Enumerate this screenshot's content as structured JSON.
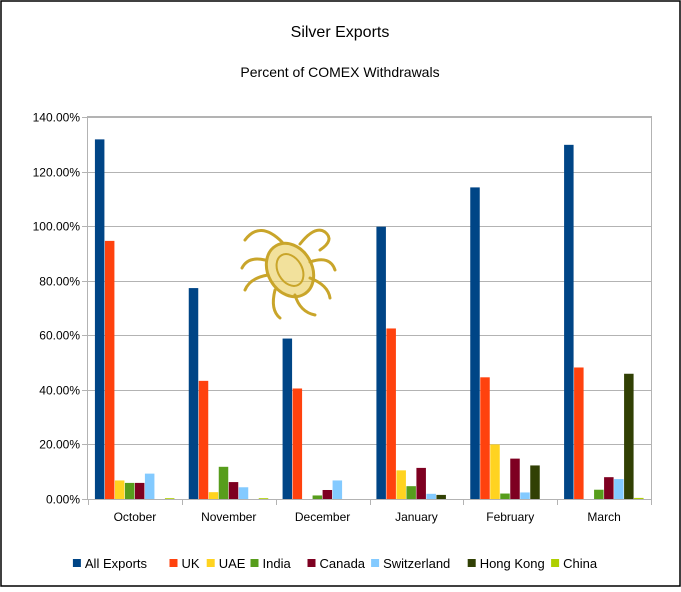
{
  "chart_data": {
    "type": "bar",
    "title": "Silver Exports",
    "subtitle": "Percent of COMEX Withdrawals",
    "xlabel": "",
    "ylabel": "",
    "ylim": [
      0,
      140
    ],
    "ytick_values": [
      0,
      20,
      40,
      60,
      80,
      100,
      120,
      140
    ],
    "ytick_labels": [
      "0.00%",
      "20.00%",
      "40.00%",
      "60.00%",
      "80.00%",
      "100.00%",
      "120.00%",
      "140.00%"
    ],
    "grid": true,
    "legend_position": "bottom",
    "categories": [
      "October",
      "November",
      "December",
      "January",
      "February",
      "March"
    ],
    "series": [
      {
        "name": "All Exports",
        "color": "#004586",
        "values": [
          131.8,
          77.3,
          58.8,
          99.8,
          114.2,
          129.8
        ]
      },
      {
        "name": "UK",
        "color": "#ff420e",
        "values": [
          94.6,
          43.3,
          40.5,
          62.5,
          44.6,
          48.2
        ]
      },
      {
        "name": "UAE",
        "color": "#ffd320",
        "values": [
          6.8,
          2.5,
          0.0,
          10.5,
          20.0,
          0.0
        ]
      },
      {
        "name": "India",
        "color": "#579d1c",
        "values": [
          5.9,
          11.8,
          1.3,
          4.7,
          2.0,
          3.4
        ]
      },
      {
        "name": "Canada",
        "color": "#7e0021",
        "values": [
          5.9,
          6.2,
          3.3,
          11.4,
          14.8,
          8.0
        ]
      },
      {
        "name": "Switzerland",
        "color": "#83caff",
        "values": [
          9.3,
          4.3,
          6.8,
          1.9,
          2.4,
          7.3
        ]
      },
      {
        "name": "Hong Kong",
        "color": "#314004",
        "values": [
          0.0,
          0.0,
          0.0,
          1.5,
          12.3,
          45.9
        ]
      },
      {
        "name": "China",
        "color": "#aecf00",
        "values": [
          0.3,
          0.3,
          0.0,
          0.0,
          0.0,
          0.4
        ]
      }
    ]
  }
}
